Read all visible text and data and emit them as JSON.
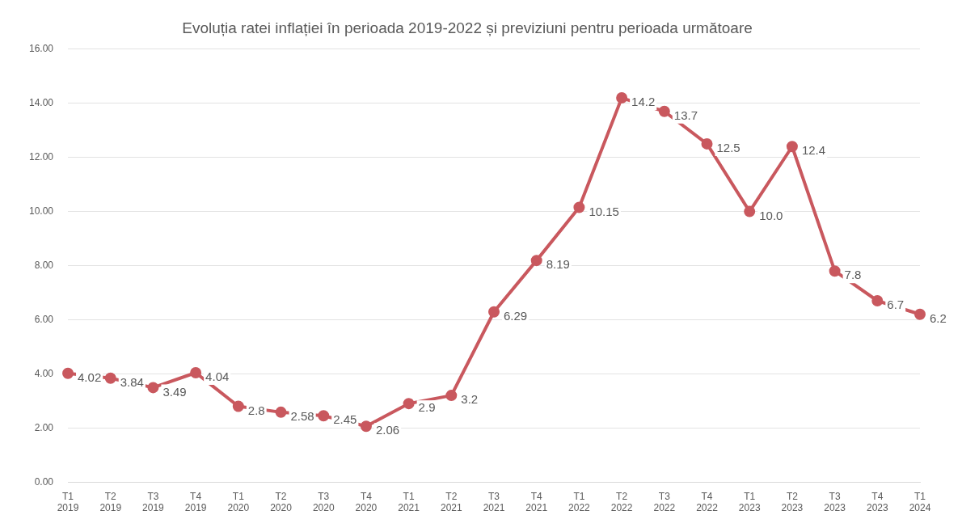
{
  "chart_data": {
    "type": "line",
    "title": "Evoluția ratei inflației în perioada 2019-2022 și previziuni pentru perioada următoare",
    "categories": [
      "T1 2019",
      "T2 2019",
      "T3 2019",
      "T4 2019",
      "T1 2020",
      "T2 2020",
      "T3 2020",
      "T4 2020",
      "T1 2021",
      "T2 2021",
      "T3 2021",
      "T4 2021",
      "T1 2022",
      "T2 2022",
      "T3 2022",
      "T4 2022",
      "T1 2023",
      "T2 2023",
      "T3 2023",
      "T4 2023",
      "T1 2024"
    ],
    "series": [
      {
        "color": "#c9585e",
        "values": [
          4.02,
          3.84,
          3.49,
          4.04,
          2.8,
          2.58,
          2.45,
          2.06,
          2.9,
          3.2,
          6.29,
          8.19,
          10.15,
          14.2,
          13.7,
          12.5,
          10.0,
          12.4,
          7.8,
          6.7,
          6.2
        ],
        "value_labels": [
          "4.02",
          "3.84",
          "3.49",
          "4.04",
          "2.8",
          "2.58",
          "2.45",
          "2.06",
          "2.9",
          "3.2",
          "6.29",
          "8.19",
          "10.15",
          "14.2",
          "13.7",
          "12.5",
          "10.0",
          "12.4",
          "7.8",
          "6.7",
          "6.2"
        ]
      }
    ],
    "ylim": [
      0,
      16
    ],
    "yticks": [
      {
        "value": 0,
        "label": "0.00"
      },
      {
        "value": 2,
        "label": "2.00"
      },
      {
        "value": 4,
        "label": "4.00"
      },
      {
        "value": 6,
        "label": "6.00"
      },
      {
        "value": 8,
        "label": "8.00"
      },
      {
        "value": 10,
        "label": "10.00"
      },
      {
        "value": 12,
        "label": "12.00"
      },
      {
        "value": 14,
        "label": "14.00"
      },
      {
        "value": 16,
        "label": "16.00"
      }
    ],
    "grid": "y",
    "legend": false,
    "marker": "circle",
    "line_style": "solid"
  }
}
